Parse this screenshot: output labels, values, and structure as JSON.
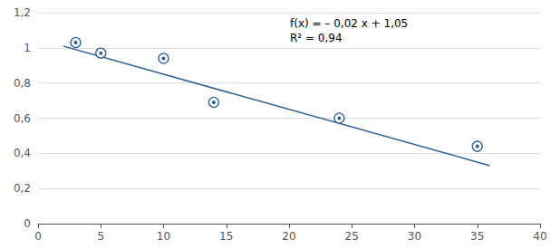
{
  "chart_data": {
    "type": "scatter",
    "series": [
      {
        "type": "line",
        "x": [
          2.0,
          36.0
        ],
        "values": [
          1.01,
          0.33
        ],
        "color": "#2E5E8E"
      },
      {
        "type": "scatter",
        "x": [
          3,
          5,
          10,
          14,
          24,
          35
        ],
        "values": [
          1.03,
          0.97,
          0.94,
          0.69,
          0.6,
          0.44
        ],
        "color": "#2E5E8E",
        "marker": "circle"
      }
    ],
    "annotations": [
      "f(x) = – 0,02 x + 1,05",
      "R² = 0,94"
    ],
    "xlim": [
      0,
      40
    ],
    "ylim": [
      0,
      1.2
    ],
    "xticks": [
      0,
      5,
      10,
      15,
      20,
      25,
      30,
      35,
      40
    ],
    "yticks": [
      0,
      {
        "value": 0.2,
        "label": "0,2"
      },
      {
        "value": 0.4,
        "label": "0,4"
      },
      {
        "value": 0.6,
        "label": "0,6"
      },
      {
        "value": 0.8,
        "label": "0,8"
      },
      1,
      {
        "value": 1.2,
        "label": "1,2"
      }
    ],
    "grid": true
  }
}
